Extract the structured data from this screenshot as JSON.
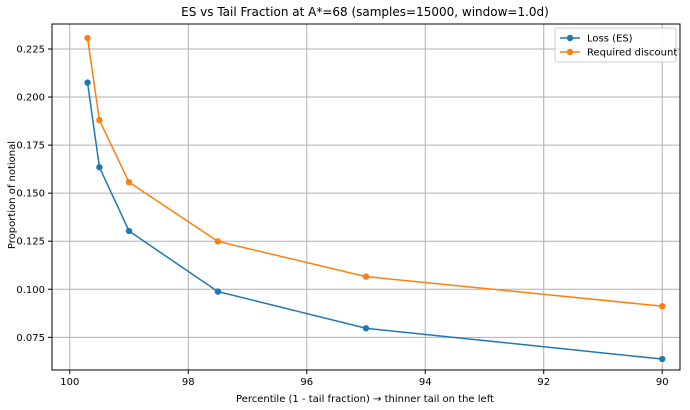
{
  "chart_data": {
    "type": "line",
    "title": "ES vs Tail Fraction at A*=68 (samples=15000, window=1.0d)",
    "xlabel": "Percentile (1 - tail fraction)  →  thinner tail on the left",
    "ylabel": "Proportion of notional",
    "x_reversed": true,
    "xlim": [
      100.3,
      89.7
    ],
    "ylim": [
      0.058,
      0.238
    ],
    "xticks": [
      100,
      98,
      96,
      94,
      92,
      90
    ],
    "yticks": [
      0.075,
      0.1,
      0.125,
      0.15,
      0.175,
      0.2,
      0.225
    ],
    "ytick_labels": [
      "0.075",
      "0.100",
      "0.125",
      "0.150",
      "0.175",
      "0.200",
      "0.225"
    ],
    "grid": true,
    "legend_position": "top-right",
    "x": [
      99.7,
      99.5,
      99.0,
      97.5,
      95.0,
      90.0
    ],
    "series": [
      {
        "name": "Loss (ES)",
        "color": "#1f77b4",
        "values": [
          0.2075,
          0.1635,
          0.1303,
          0.0988,
          0.0797,
          0.0637
        ]
      },
      {
        "name": "Required discount",
        "color": "#ff7f0e",
        "values": [
          0.2307,
          0.188,
          0.1557,
          0.1249,
          0.1066,
          0.0912
        ]
      }
    ]
  }
}
